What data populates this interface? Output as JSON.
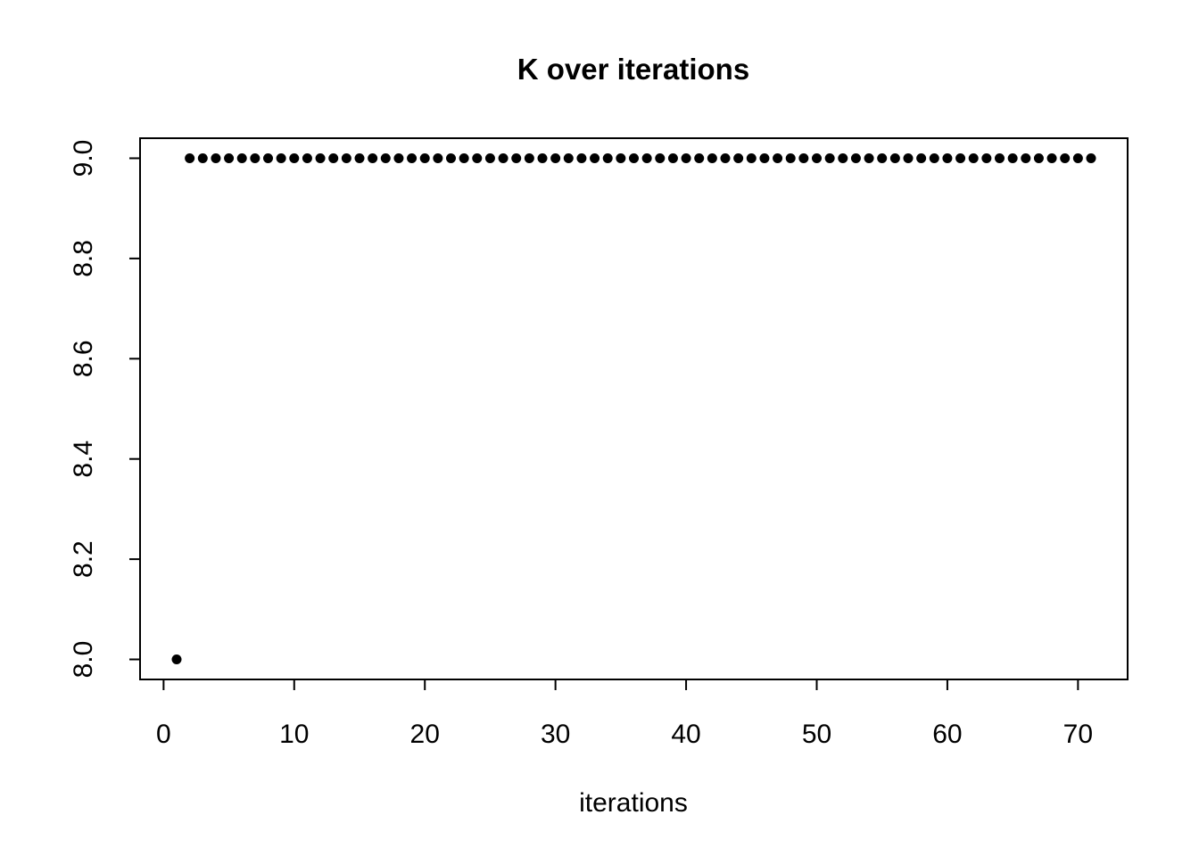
{
  "chart_data": {
    "type": "scatter",
    "title": "K over iterations",
    "xlabel": "iterations",
    "ylabel": "",
    "x": [
      1,
      2,
      3,
      4,
      5,
      6,
      7,
      8,
      9,
      10,
      11,
      12,
      13,
      14,
      15,
      16,
      17,
      18,
      19,
      20,
      21,
      22,
      23,
      24,
      25,
      26,
      27,
      28,
      29,
      30,
      31,
      32,
      33,
      34,
      35,
      36,
      37,
      38,
      39,
      40,
      41,
      42,
      43,
      44,
      45,
      46,
      47,
      48,
      49,
      50,
      51,
      52,
      53,
      54,
      55,
      56,
      57,
      58,
      59,
      60,
      61,
      62,
      63,
      64,
      65,
      66,
      67,
      68,
      69,
      70,
      71
    ],
    "y": [
      8,
      9,
      9,
      9,
      9,
      9,
      9,
      9,
      9,
      9,
      9,
      9,
      9,
      9,
      9,
      9,
      9,
      9,
      9,
      9,
      9,
      9,
      9,
      9,
      9,
      9,
      9,
      9,
      9,
      9,
      9,
      9,
      9,
      9,
      9,
      9,
      9,
      9,
      9,
      9,
      9,
      9,
      9,
      9,
      9,
      9,
      9,
      9,
      9,
      9,
      9,
      9,
      9,
      9,
      9,
      9,
      9,
      9,
      9,
      9,
      9,
      9,
      9,
      9,
      9,
      9,
      9,
      9,
      9,
      9,
      9
    ],
    "xticks": [
      0,
      10,
      20,
      30,
      40,
      50,
      60,
      70
    ],
    "yticks": [
      8.0,
      8.2,
      8.4,
      8.6,
      8.8,
      9.0
    ],
    "ytick_labels": [
      "8.0",
      "8.2",
      "8.4",
      "8.6",
      "8.8",
      "9.0"
    ],
    "xlim": [
      -1.8,
      73.8
    ],
    "ylim": [
      7.96,
      9.04
    ],
    "grid": false,
    "legend": "none",
    "point_color": "#000000",
    "axis_color": "#000000",
    "background": "#ffffff",
    "point_radius": 5.5
  }
}
